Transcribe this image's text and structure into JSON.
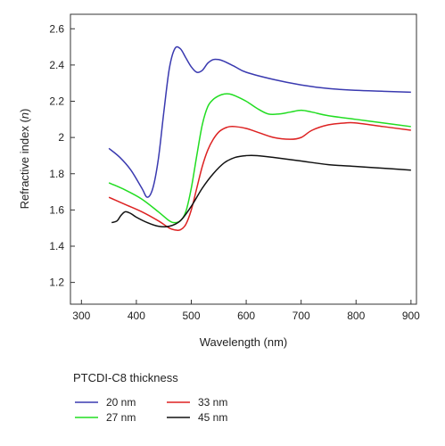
{
  "chart_data": {
    "type": "line",
    "xlabel": "Wavelength (nm)",
    "ylabel_main": "Refractive index (",
    "ylabel_var": "n",
    "ylabel_end": ")",
    "xlim": [
      280,
      910
    ],
    "ylim": [
      1.08,
      2.68
    ],
    "xticks": [
      300,
      400,
      500,
      600,
      700,
      800,
      900
    ],
    "yticks": [
      1.2,
      1.4,
      1.6,
      1.8,
      2.0,
      2.2,
      2.4,
      2.6
    ],
    "ytick_labels": [
      "1.2",
      "1.4",
      "1.6",
      "1.8",
      "2",
      "2.2",
      "2.4",
      "2.6"
    ],
    "legend_title": "PTCDI-C8 thickness",
    "series": [
      {
        "name": "20 nm",
        "color": "#3a3ab0",
        "x": [
          350,
          370,
          390,
          410,
          420,
          430,
          440,
          450,
          460,
          470,
          480,
          490,
          500,
          510,
          520,
          530,
          540,
          550,
          560,
          580,
          600,
          650,
          700,
          750,
          800,
          850,
          900
        ],
        "y": [
          1.94,
          1.89,
          1.82,
          1.72,
          1.67,
          1.72,
          1.88,
          2.14,
          2.38,
          2.49,
          2.49,
          2.44,
          2.39,
          2.36,
          2.37,
          2.41,
          2.43,
          2.43,
          2.42,
          2.39,
          2.36,
          2.32,
          2.29,
          2.27,
          2.26,
          2.255,
          2.25
        ]
      },
      {
        "name": "27 nm",
        "color": "#22dd22",
        "x": [
          350,
          380,
          410,
          440,
          460,
          470,
          480,
          490,
          500,
          510,
          520,
          530,
          540,
          550,
          560,
          570,
          580,
          600,
          620,
          640,
          660,
          680,
          700,
          720,
          750,
          800,
          850,
          900
        ],
        "y": [
          1.75,
          1.71,
          1.66,
          1.59,
          1.54,
          1.53,
          1.54,
          1.59,
          1.72,
          1.9,
          2.07,
          2.17,
          2.21,
          2.23,
          2.24,
          2.24,
          2.23,
          2.2,
          2.16,
          2.13,
          2.13,
          2.14,
          2.15,
          2.14,
          2.12,
          2.1,
          2.08,
          2.06
        ]
      },
      {
        "name": "33 nm",
        "color": "#dd2222",
        "x": [
          350,
          380,
          410,
          440,
          460,
          470,
          480,
          490,
          500,
          510,
          520,
          530,
          540,
          550,
          560,
          570,
          580,
          600,
          620,
          650,
          680,
          700,
          720,
          750,
          780,
          800,
          850,
          900
        ],
        "y": [
          1.67,
          1.63,
          1.59,
          1.54,
          1.5,
          1.49,
          1.49,
          1.52,
          1.6,
          1.72,
          1.84,
          1.93,
          1.99,
          2.03,
          2.05,
          2.06,
          2.06,
          2.05,
          2.03,
          2.0,
          1.99,
          2.0,
          2.04,
          2.07,
          2.08,
          2.08,
          2.06,
          2.04
        ]
      },
      {
        "name": "45 nm",
        "color": "#111111",
        "x": [
          355,
          365,
          372,
          380,
          390,
          400,
          420,
          440,
          460,
          480,
          500,
          520,
          540,
          560,
          580,
          600,
          620,
          650,
          700,
          750,
          800,
          850,
          900
        ],
        "y": [
          1.53,
          1.54,
          1.57,
          1.59,
          1.58,
          1.56,
          1.53,
          1.51,
          1.51,
          1.54,
          1.62,
          1.72,
          1.8,
          1.86,
          1.89,
          1.9,
          1.9,
          1.89,
          1.87,
          1.85,
          1.84,
          1.83,
          1.82
        ]
      }
    ]
  }
}
